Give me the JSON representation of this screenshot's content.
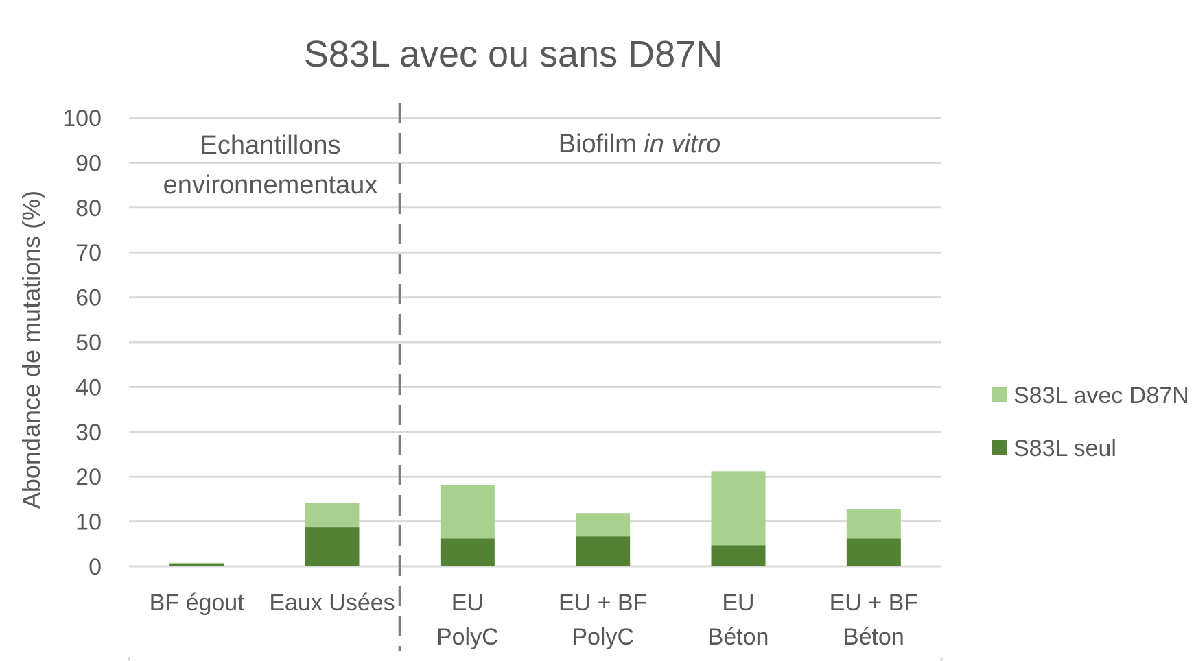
{
  "chart_data": {
    "type": "bar",
    "stacked": true,
    "title": "S83L avec ou sans D87N",
    "ylabel": "Abondance de mutations (%)",
    "xlabel": "",
    "ylim": [
      0,
      100
    ],
    "yticks": [
      0,
      10,
      20,
      30,
      40,
      50,
      60,
      70,
      80,
      90,
      100
    ],
    "grid": true,
    "legend_position": "right",
    "categories": [
      [
        "BF égout"
      ],
      [
        "Eaux Usées"
      ],
      [
        "EU",
        "PolyC"
      ],
      [
        "EU + BF",
        "PolyC"
      ],
      [
        "EU",
        "Béton"
      ],
      [
        "EU + BF",
        "Béton"
      ]
    ],
    "series": [
      {
        "name": "S83L seul",
        "color": "#548235",
        "values": [
          0.5,
          8.7,
          6.2,
          6.7,
          4.7,
          6.2
        ]
      },
      {
        "name": "S83L avec D87N",
        "color": "#a9d18e",
        "values": [
          0.3,
          5.5,
          12.0,
          5.2,
          16.5,
          6.5
        ]
      }
    ],
    "regions": [
      {
        "label_lines": [
          "Echantillons",
          "environnementaux"
        ],
        "italic": ""
      },
      {
        "label": "Biofilm ",
        "italic": "in vitro"
      }
    ],
    "separator": "dashed"
  }
}
